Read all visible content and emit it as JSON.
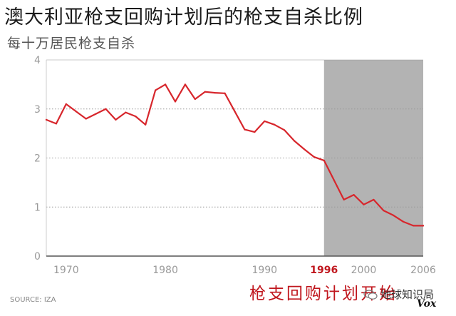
{
  "header": {
    "title": "澳大利亚枪支回购计划后的枪支自杀比例",
    "subtitle": "每十万居民枪支自杀"
  },
  "footer": {
    "source": "SOURCE: IZA",
    "annotation": "枪支回购计划开始",
    "watermark": "地球知识局",
    "logo": "Vox"
  },
  "colors": {
    "line": "#d7262c",
    "highlight_region": "#b3b3b3",
    "highlight_label": "#c0161d",
    "grid": "#999999"
  },
  "chart_data": {
    "type": "line",
    "title": "澳大利亚枪支回购计划后的枪支自杀比例",
    "subtitle": "每十万居民枪支自杀",
    "xlabel": "",
    "ylabel": "",
    "xlim": [
      1968,
      2006
    ],
    "ylim": [
      0,
      4
    ],
    "x_ticks": [
      1970,
      1980,
      1990,
      1996,
      2000,
      2006
    ],
    "y_ticks": [
      0,
      1,
      2,
      3,
      4
    ],
    "highlight_tick": 1996,
    "shaded_range": [
      1996,
      2006
    ],
    "grid": true,
    "series": [
      {
        "x": [
          1968,
          1969,
          1970,
          1971,
          1972,
          1973,
          1974,
          1975,
          1976,
          1977,
          1978,
          1979,
          1980,
          1981,
          1982,
          1983,
          1984,
          1985,
          1986,
          1987,
          1988,
          1989,
          1990,
          1991,
          1992,
          1993,
          1994,
          1995,
          1996,
          1997,
          1998,
          1999,
          2000,
          2001,
          2002,
          2003,
          2004,
          2005,
          2006
        ],
        "values": [
          2.78,
          2.7,
          3.1,
          2.95,
          2.8,
          2.9,
          3.0,
          2.78,
          2.93,
          2.85,
          2.68,
          3.38,
          3.5,
          3.15,
          3.5,
          3.2,
          3.35,
          3.33,
          3.32,
          2.95,
          2.58,
          2.53,
          2.75,
          2.68,
          2.57,
          2.35,
          2.18,
          2.02,
          1.95,
          1.55,
          1.15,
          1.25,
          1.05,
          1.15,
          0.93,
          0.83,
          0.7,
          0.62,
          0.62
        ]
      }
    ]
  }
}
